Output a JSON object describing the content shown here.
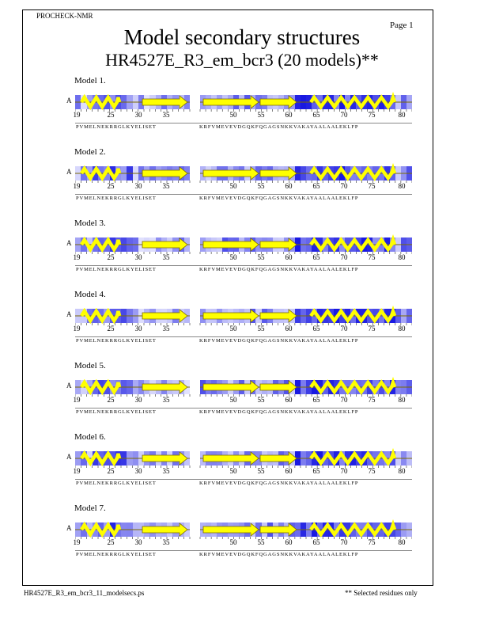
{
  "header": {
    "program": "PROCHECK-NMR",
    "page": "Page  1"
  },
  "title": {
    "line1": "Model secondary structures",
    "line2": "HR4527E_R3_em_bcr3 (20 models)**"
  },
  "chain_id": "A",
  "axis_numbers": [
    "19",
    "25",
    "30",
    "35",
    "50",
    "55",
    "60",
    "65",
    "70",
    "75",
    "80"
  ],
  "sequence": {
    "part1": "PVMELNEKRRGLKYELISET",
    "part2": "KRFVMEVEVDGQKFQGAGSNKKVAKAYAALAALEKLFP"
  },
  "models": [
    {
      "label": "Model  1."
    },
    {
      "label": "Model  2."
    },
    {
      "label": "Model  3."
    },
    {
      "label": "Model  4."
    },
    {
      "label": "Model  5."
    },
    {
      "label": "Model  6."
    },
    {
      "label": "Model  7."
    }
  ],
  "colors": {
    "helix": "#ffff00",
    "strand": "#ffff00",
    "outline": "#7a6a00",
    "shade_dark": "#2020d8",
    "shade_light": "#f0f0ff"
  },
  "footer": {
    "filename": "HR4527E_R3_em_bcr3_11_modelsecs.ps",
    "note": "** Selected residues only"
  }
}
